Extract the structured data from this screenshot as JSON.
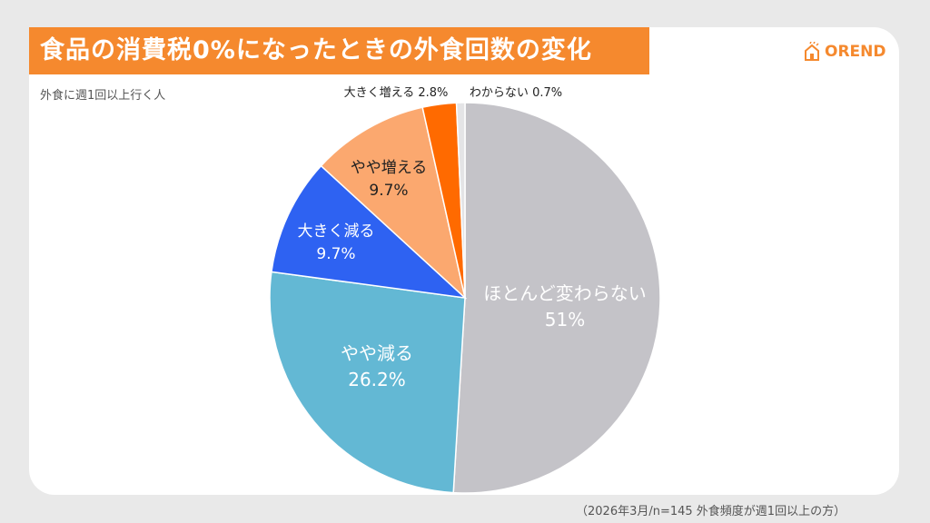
{
  "title": "食品の消費税0%になったときの外食回数の変化",
  "logo": {
    "text": "OREND",
    "icon": "house-icon",
    "color": "#f5892e"
  },
  "subtitle": "外食に週1回以上行く人",
  "footnote": "（2026年3月/n=145 外食頻度が週1回以上の方）",
  "chart_data": {
    "type": "pie",
    "start": "top",
    "direction": "clockwise",
    "slices": [
      {
        "label": "ほとんど変わらない",
        "value": 51,
        "value_label": "51%",
        "color": "#c4c3c8",
        "label_color": "#ffffff"
      },
      {
        "label": "やや減る",
        "value": 26.2,
        "value_label": "26.2%",
        "color": "#63b8d4",
        "label_color": "#ffffff"
      },
      {
        "label": "大きく減る",
        "value": 9.7,
        "value_label": "9.7%",
        "color": "#2e62f2",
        "label_color": "#ffffff"
      },
      {
        "label": "やや増える",
        "value": 9.7,
        "value_label": "9.7%",
        "color": "#fba86f",
        "label_color": "#222222"
      },
      {
        "label": "大きく増える",
        "value": 2.8,
        "value_label": "2.8%",
        "color": "#ff6a00",
        "label_color": "#222222"
      },
      {
        "label": "わからない",
        "value": 0.7,
        "value_label": "0.7%",
        "color": "#e4e4e6",
        "label_color": "#222222"
      }
    ]
  }
}
